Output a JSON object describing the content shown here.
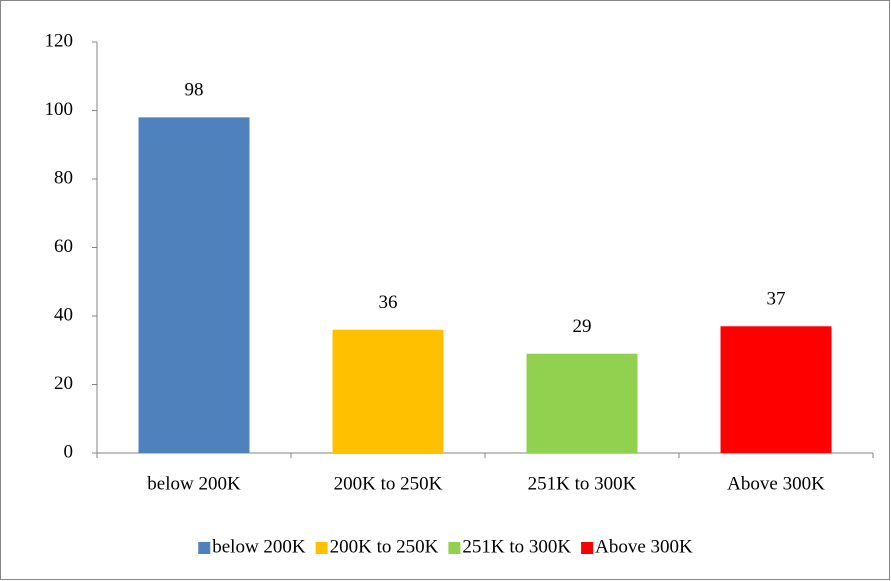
{
  "chart_data": {
    "type": "bar",
    "categories": [
      "below 200K",
      "200K to 250K",
      "251K to 300K",
      "Above 300K"
    ],
    "values": [
      98,
      36,
      29,
      37
    ],
    "colors": [
      "#4f81bd",
      "#ffc000",
      "#92d050",
      "#ff0000"
    ],
    "ylim": [
      0,
      120
    ],
    "yticks": [
      0,
      20,
      40,
      60,
      80,
      100,
      120
    ],
    "grid": false,
    "data_labels": true,
    "legend": "bottom"
  }
}
